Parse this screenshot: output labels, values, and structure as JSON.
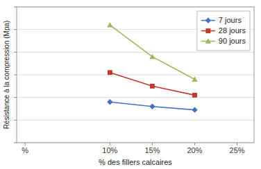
{
  "chart_data": {
    "type": "line",
    "xlabel": "% des fillers calcaires",
    "ylabel": "Résistance à la compression (Mpa)",
    "x": [
      0.1,
      0.15,
      0.2
    ],
    "xlim": [
      -0.01,
      0.27
    ],
    "xticks": [
      {
        "value": 0.0,
        "label": "%"
      },
      {
        "value": 0.1,
        "label": "10%"
      },
      {
        "value": 0.15,
        "label": "15%"
      },
      {
        "value": 0.2,
        "label": "20%"
      },
      {
        "value": 0.25,
        "label": "25%"
      }
    ],
    "ylim": [
      0,
      60
    ],
    "yticks": [
      0,
      10,
      20,
      30,
      40,
      50,
      60
    ],
    "tick_labels": "x",
    "grid": true,
    "legend": "upper right",
    "series": [
      {
        "name": "7 jours",
        "color": "#4472c4",
        "marker": "diamond",
        "line_style": "solid",
        "values": [
          18,
          16,
          14.5
        ]
      },
      {
        "name": "28 jours",
        "color": "#c0392b",
        "marker": "square",
        "line_style": "solid",
        "values": [
          31,
          25,
          21
        ]
      },
      {
        "name": "90 jours",
        "color": "#9bbb59",
        "marker": "triangle",
        "line_style": "solid",
        "values": [
          52,
          38,
          28
        ]
      }
    ]
  }
}
